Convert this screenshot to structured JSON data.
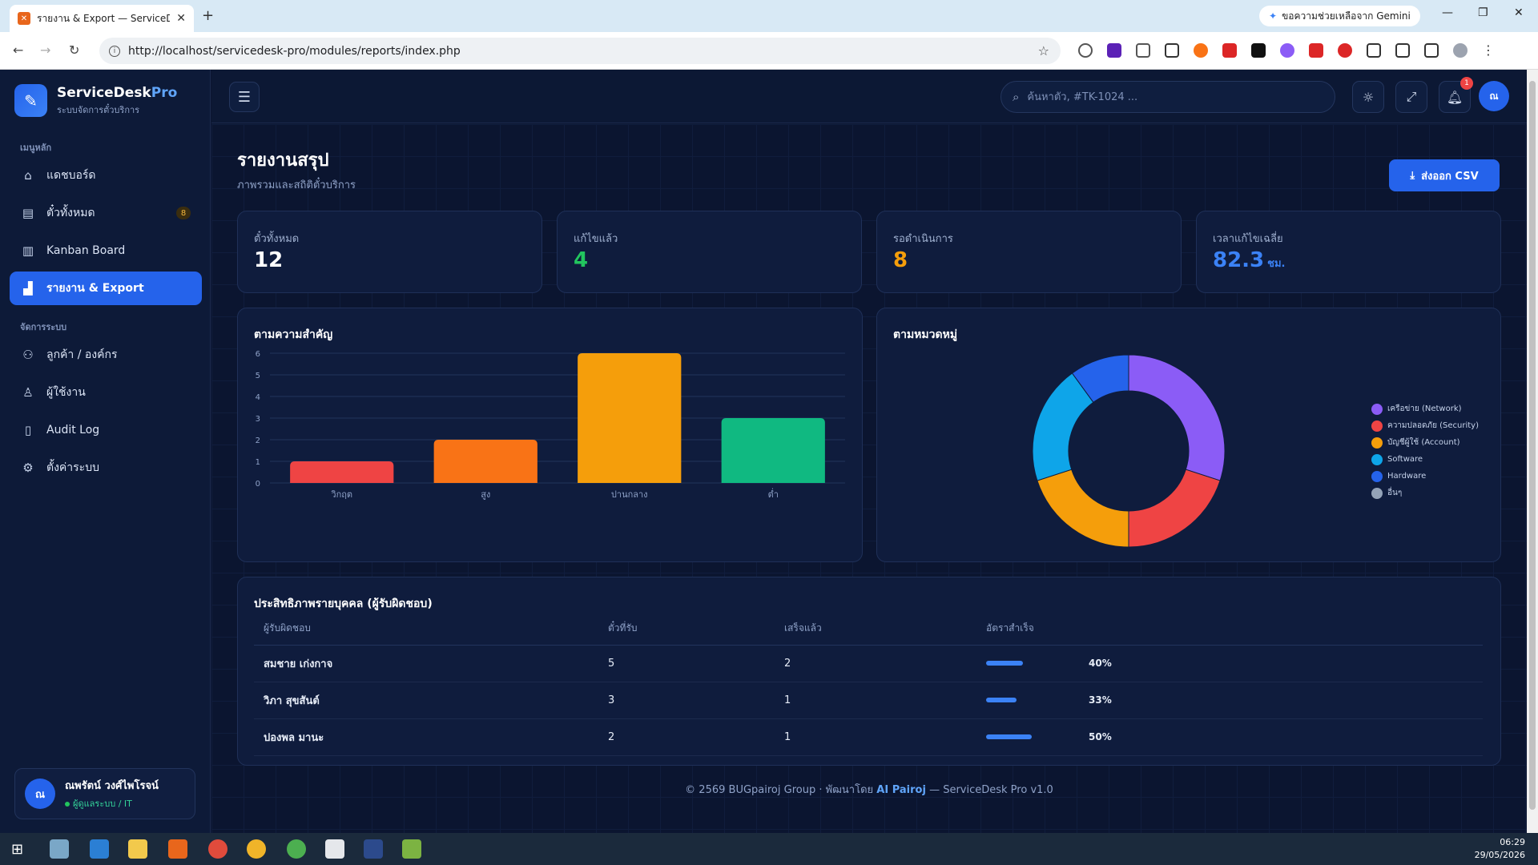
{
  "browser": {
    "tab_title": "รายงาน & Export — ServiceDesk",
    "new_tab": "+",
    "gemini": "ขอความช่วยเหลือจาก Gemini",
    "url": "http://localhost/servicedesk-pro/modules/reports/index.php"
  },
  "brand": {
    "name": "ServiceDesk",
    "name_accent": "Pro",
    "subtitle": "ระบบจัดการตั๋วบริการ"
  },
  "sidebar": {
    "section_main": "เมนูหลัก",
    "section_admin": "จัดการระบบ",
    "items": [
      {
        "label": "แดชบอร์ด",
        "icon": "home-icon"
      },
      {
        "label": "ตั๋วทั้งหมด",
        "icon": "clipboard-icon",
        "badge": "8"
      },
      {
        "label": "Kanban Board",
        "icon": "kanban-icon"
      },
      {
        "label": "รายงาน & Export",
        "icon": "chart-icon"
      },
      {
        "label": "ลูกค้า / องค์กร",
        "icon": "users-icon"
      },
      {
        "label": "ผู้ใช้งาน",
        "icon": "user-icon"
      },
      {
        "label": "Audit Log",
        "icon": "document-icon"
      },
      {
        "label": "ตั้งค่าระบบ",
        "icon": "gear-icon"
      }
    ],
    "user": {
      "initials": "ณ",
      "name": "ณพรัตน์ วงศ์ไพโรจน์",
      "role": "ผู้ดูแลระบบ / IT"
    }
  },
  "topbar": {
    "search_placeholder": "ค้นหาตั๋ว, #TK-1024 ...",
    "notification_count": "1",
    "avatar_initials": "ณ"
  },
  "page": {
    "title": "รายงานสรุป",
    "subtitle": "ภาพรวมและสถิติตั๋วบริการ",
    "export_label": "ส่งออก CSV"
  },
  "stats": [
    {
      "label": "ตั๋วทั้งหมด",
      "value": "12",
      "unit": "",
      "color": "#ffffff"
    },
    {
      "label": "แก้ไขแล้ว",
      "value": "4",
      "unit": "",
      "color": "#22c55e"
    },
    {
      "label": "รอดำเนินการ",
      "value": "8",
      "unit": "",
      "color": "#f59e0b"
    },
    {
      "label": "เวลาแก้ไขเฉลี่ย",
      "value": "82.3",
      "unit": "ชม.",
      "color": "#3b82f6"
    }
  ],
  "chart_data": [
    {
      "type": "bar",
      "title": "ตามความสำคัญ",
      "categories": [
        "วิกฤต",
        "สูง",
        "ปานกลาง",
        "ต่ำ"
      ],
      "values": [
        1,
        2,
        6,
        3
      ],
      "colors": [
        "#ef4444",
        "#f97316",
        "#f59e0b",
        "#10b981"
      ],
      "ylim": [
        0,
        6
      ],
      "yticks": [
        "0",
        "1",
        "2",
        "3",
        "4",
        "5",
        "6"
      ],
      "grid": true
    },
    {
      "type": "pie",
      "title": "ตามหมวดหมู่",
      "labels": [
        "เครือข่าย (Network)",
        "ความปลอดภัย (Security)",
        "บัญชีผู้ใช้ (Account)",
        "Software",
        "Hardware",
        "อื่นๆ"
      ],
      "values": [
        3,
        2,
        2,
        2,
        1,
        0
      ],
      "colors": [
        "#8b5cf6",
        "#ef4444",
        "#f59e0b",
        "#0ea5e9",
        "#2563eb",
        "#94a3b8"
      ],
      "legend": "right"
    }
  ],
  "performance": {
    "title": "ประสิทธิภาพรายบุคคล (ผู้รับผิดชอบ)",
    "columns": [
      "ผู้รับผิดชอบ",
      "ตั๋วที่รับ",
      "เสร็จแล้ว",
      "อัตราสำเร็จ"
    ],
    "rows": [
      {
        "name": "สมชาย เก่งกาจ",
        "received": "5",
        "done": "2",
        "rate": "40%",
        "rate_value": 0.4
      },
      {
        "name": "วิภา สุขสันต์",
        "received": "3",
        "done": "1",
        "rate": "33%",
        "rate_value": 0.33
      },
      {
        "name": "ปองพล มานะ",
        "received": "2",
        "done": "1",
        "rate": "50%",
        "rate_value": 0.5
      }
    ]
  },
  "footer": {
    "prefix": "© 2569 BUGpairoj Group · พัฒนาโดย",
    "author": "AI Pairoj",
    "suffix": "— ServiceDesk Pro v1.0"
  },
  "taskbar": {
    "time": "06:29",
    "date": "29/05/2026"
  }
}
